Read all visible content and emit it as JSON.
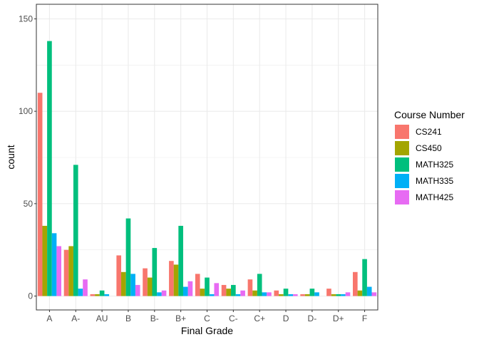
{
  "chart_data": {
    "type": "bar",
    "title": "",
    "xlabel": "Final Grade",
    "ylabel": "count",
    "ylim": [
      0,
      157
    ],
    "yticks": [
      0,
      50,
      100,
      150
    ],
    "grid": true,
    "legend_position": "right",
    "legend_title": "Course Number",
    "categories": [
      "A",
      "A-",
      "AU",
      "B",
      "B-",
      "B+",
      "C",
      "C-",
      "C+",
      "D",
      "D-",
      "D+",
      "F"
    ],
    "series": [
      {
        "name": "CS241",
        "color": "#F8766D",
        "values": [
          110,
          25,
          1,
          22,
          15,
          19,
          12,
          6,
          9,
          3,
          1,
          4,
          13
        ]
      },
      {
        "name": "CS450",
        "color": "#A3A500",
        "values": [
          38,
          27,
          1,
          13,
          10,
          17,
          4,
          4,
          3,
          1,
          1,
          1,
          3
        ]
      },
      {
        "name": "MATH325",
        "color": "#00BF7D",
        "values": [
          138,
          71,
          3,
          42,
          26,
          38,
          10,
          6,
          12,
          4,
          4,
          1,
          20
        ]
      },
      {
        "name": "MATH335",
        "color": "#00B0F6",
        "values": [
          34,
          4,
          1,
          12,
          2,
          5,
          1,
          1,
          2,
          1,
          2,
          1,
          5
        ]
      },
      {
        "name": "MATH425",
        "color": "#E76BF3",
        "values": [
          27,
          9,
          0,
          6,
          3,
          8,
          7,
          3,
          2,
          1,
          0,
          2,
          2
        ]
      }
    ]
  }
}
